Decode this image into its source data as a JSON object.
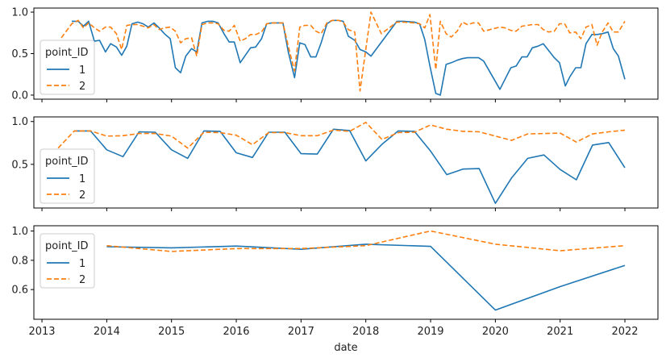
{
  "chart_data": [
    {
      "type": "line",
      "title": "",
      "xlabel": "",
      "ylabel": "",
      "xlim": [
        2012.875,
        2022.51
      ],
      "ylim": [
        -0.049,
        1.049
      ],
      "yticks": [
        0.0,
        0.5,
        1.0
      ],
      "ytick_labels": [
        "0.0",
        "0.5",
        "1.0"
      ],
      "legend": {
        "title": "point_ID",
        "placement": "center-left"
      },
      "series": [
        {
          "name": "1",
          "color": "#1f77b4",
          "style": "solid",
          "x": [
            2013.46,
            2013.56,
            2013.64,
            2013.72,
            2013.81,
            2013.89,
            2013.98,
            2014.06,
            2014.15,
            2014.23,
            2014.31,
            2014.39,
            2014.48,
            2014.56,
            2014.64,
            2014.73,
            2014.81,
            2014.89,
            2014.98,
            2015.06,
            2015.14,
            2015.22,
            2015.31,
            2015.39,
            2015.47,
            2015.56,
            2015.64,
            2015.72,
            2015.81,
            2015.89,
            2015.97,
            2016.06,
            2016.14,
            2016.22,
            2016.3,
            2016.39,
            2016.47,
            2016.55,
            2016.64,
            2016.72,
            2016.8,
            2016.9,
            2016.98,
            2017.06,
            2017.15,
            2017.23,
            2017.31,
            2017.4,
            2017.48,
            2017.58,
            2017.65,
            2017.73,
            2017.83,
            2017.91,
            2018.0,
            2018.08,
            2018.48,
            2018.58,
            2018.75,
            2018.83,
            2018.91,
            2018.99,
            2019.08,
            2019.15,
            2019.24,
            2019.32,
            2019.41,
            2019.49,
            2019.57,
            2019.66,
            2019.74,
            2019.82,
            2020.07,
            2020.24,
            2020.32,
            2020.41,
            2020.49,
            2020.57,
            2020.66,
            2020.74,
            2020.82,
            2020.91,
            2020.99,
            2021.08,
            2021.15,
            2021.24,
            2021.32,
            2021.4,
            2021.49,
            2021.57,
            2021.65,
            2021.74,
            2021.82,
            2021.9,
            2022.0
          ],
          "y": [
            0.89,
            0.89,
            0.83,
            0.89,
            0.65,
            0.66,
            0.52,
            0.62,
            0.58,
            0.48,
            0.59,
            0.86,
            0.88,
            0.86,
            0.82,
            0.87,
            0.81,
            0.74,
            0.68,
            0.33,
            0.27,
            0.47,
            0.56,
            0.52,
            0.87,
            0.89,
            0.89,
            0.87,
            0.74,
            0.64,
            0.64,
            0.39,
            0.48,
            0.57,
            0.58,
            0.68,
            0.86,
            0.87,
            0.87,
            0.87,
            0.53,
            0.21,
            0.63,
            0.61,
            0.46,
            0.46,
            0.63,
            0.86,
            0.9,
            0.9,
            0.89,
            0.71,
            0.66,
            0.55,
            0.52,
            0.47,
            0.89,
            0.89,
            0.88,
            0.86,
            0.67,
            0.35,
            0.02,
            0.0,
            0.37,
            0.39,
            0.42,
            0.44,
            0.45,
            0.45,
            0.45,
            0.41,
            0.07,
            0.33,
            0.35,
            0.46,
            0.46,
            0.57,
            0.59,
            0.62,
            0.54,
            0.45,
            0.39,
            0.11,
            0.22,
            0.33,
            0.33,
            0.62,
            0.73,
            0.73,
            0.74,
            0.76,
            0.56,
            0.47,
            0.19
          ]
        },
        {
          "name": "2",
          "color": "#ff7f0e",
          "style": "dashed",
          "x": [
            2013.3,
            2013.46,
            2013.56,
            2013.64,
            2013.72,
            2013.81,
            2013.89,
            2013.98,
            2014.06,
            2014.15,
            2014.23,
            2014.31,
            2014.39,
            2014.48,
            2014.56,
            2014.64,
            2014.73,
            2014.81,
            2014.89,
            2014.98,
            2015.06,
            2015.14,
            2015.22,
            2015.31,
            2015.39,
            2015.47,
            2015.56,
            2015.64,
            2015.72,
            2015.81,
            2015.89,
            2015.97,
            2016.06,
            2016.14,
            2016.22,
            2016.3,
            2016.39,
            2016.47,
            2016.55,
            2016.64,
            2016.72,
            2016.8,
            2016.9,
            2016.98,
            2017.06,
            2017.15,
            2017.23,
            2017.31,
            2017.4,
            2017.48,
            2017.58,
            2017.65,
            2017.73,
            2017.83,
            2017.91,
            2018.08,
            2018.24,
            2018.48,
            2018.58,
            2018.75,
            2018.83,
            2018.91,
            2018.99,
            2019.08,
            2019.15,
            2019.24,
            2019.32,
            2019.41,
            2019.49,
            2019.57,
            2019.66,
            2019.74,
            2019.82,
            2020.07,
            2020.15,
            2020.24,
            2020.32,
            2020.41,
            2020.49,
            2020.57,
            2020.66,
            2020.74,
            2020.82,
            2020.91,
            2020.99,
            2021.07,
            2021.15,
            2021.24,
            2021.32,
            2021.4,
            2021.49,
            2021.57,
            2021.65,
            2021.74,
            2021.82,
            2021.9,
            2022.0
          ],
          "y": [
            0.69,
            0.86,
            0.9,
            0.81,
            0.87,
            0.81,
            0.77,
            0.82,
            0.82,
            0.74,
            0.55,
            0.84,
            0.85,
            0.85,
            0.83,
            0.81,
            0.85,
            0.79,
            0.81,
            0.82,
            0.77,
            0.63,
            0.68,
            0.69,
            0.47,
            0.85,
            0.87,
            0.87,
            0.86,
            0.78,
            0.77,
            0.84,
            0.65,
            0.68,
            0.73,
            0.73,
            0.76,
            0.86,
            0.87,
            0.87,
            0.87,
            0.6,
            0.29,
            0.82,
            0.84,
            0.84,
            0.77,
            0.74,
            0.87,
            0.9,
            0.9,
            0.88,
            0.79,
            0.76,
            0.05,
            1.0,
            0.74,
            0.88,
            0.88,
            0.87,
            0.86,
            0.81,
            0.97,
            0.31,
            0.89,
            0.74,
            0.7,
            0.77,
            0.88,
            0.85,
            0.87,
            0.87,
            0.77,
            0.82,
            0.81,
            0.78,
            0.77,
            0.83,
            0.84,
            0.85,
            0.85,
            0.79,
            0.76,
            0.77,
            0.86,
            0.86,
            0.75,
            0.76,
            0.68,
            0.82,
            0.85,
            0.6,
            0.76,
            0.87,
            0.76,
            0.76,
            0.89
          ]
        }
      ]
    },
    {
      "type": "line",
      "title": "",
      "xlabel": "",
      "ylabel": "",
      "xlim": [
        2012.875,
        2022.51
      ],
      "ylim": [
        -0.01,
        1.054
      ],
      "yticks": [
        0.5,
        1.0
      ],
      "ytick_labels": [
        "0.5",
        "1.0"
      ],
      "legend": {
        "title": "point_ID",
        "placement": "lower-left"
      },
      "series": [
        {
          "name": "1",
          "color": "#1f77b4",
          "style": "solid",
          "x": [
            2013.5,
            2013.75,
            2014.0,
            2014.25,
            2014.5,
            2014.75,
            2015.0,
            2015.25,
            2015.5,
            2015.75,
            2016.0,
            2016.25,
            2016.5,
            2016.75,
            2017.0,
            2017.25,
            2017.5,
            2017.75,
            2018.0,
            2018.25,
            2018.5,
            2018.75,
            2019.0,
            2019.25,
            2019.5,
            2019.75,
            2020.0,
            2020.25,
            2020.5,
            2020.75,
            2021.0,
            2021.25,
            2021.5,
            2021.75,
            2022.0
          ],
          "y": [
            0.89,
            0.89,
            0.67,
            0.59,
            0.88,
            0.875,
            0.67,
            0.57,
            0.89,
            0.885,
            0.635,
            0.58,
            0.875,
            0.875,
            0.625,
            0.62,
            0.91,
            0.895,
            0.54,
            0.735,
            0.89,
            0.885,
            0.655,
            0.38,
            0.445,
            0.45,
            0.045,
            0.34,
            0.57,
            0.61,
            0.44,
            0.32,
            0.725,
            0.755,
            0.46
          ]
        },
        {
          "name": "2",
          "color": "#ff7f0e",
          "style": "dashed",
          "x": [
            2013.25,
            2013.5,
            2013.75,
            2014.0,
            2014.25,
            2014.5,
            2014.75,
            2015.0,
            2015.25,
            2015.5,
            2015.75,
            2016.0,
            2016.25,
            2016.5,
            2016.75,
            2017.0,
            2017.25,
            2017.5,
            2017.75,
            2018.0,
            2018.25,
            2018.5,
            2018.75,
            2019.0,
            2019.25,
            2019.5,
            2019.75,
            2020.0,
            2020.25,
            2020.5,
            2020.75,
            2021.0,
            2021.25,
            2021.5,
            2021.75,
            2022.0
          ],
          "y": [
            0.69,
            0.89,
            0.89,
            0.83,
            0.835,
            0.86,
            0.86,
            0.83,
            0.69,
            0.875,
            0.87,
            0.84,
            0.73,
            0.87,
            0.87,
            0.835,
            0.835,
            0.9,
            0.885,
            0.99,
            0.79,
            0.87,
            0.875,
            0.96,
            0.91,
            0.885,
            0.88,
            0.83,
            0.78,
            0.855,
            0.86,
            0.865,
            0.76,
            0.855,
            0.88,
            0.9
          ]
        }
      ]
    },
    {
      "type": "line",
      "title": "",
      "xlabel": "date",
      "ylabel": "",
      "xlim": [
        2012.875,
        2022.51
      ],
      "ylim": [
        0.397,
        1.036
      ],
      "yticks": [
        0.6,
        0.8,
        1.0
      ],
      "ytick_labels": [
        "0.6",
        "0.8",
        "1.0"
      ],
      "xticks": [
        2013,
        2014,
        2015,
        2016,
        2017,
        2018,
        2019,
        2020,
        2021,
        2022
      ],
      "xtick_labels": [
        "2013",
        "2014",
        "2015",
        "2016",
        "2017",
        "2018",
        "2019",
        "2020",
        "2021",
        "2022"
      ],
      "legend": {
        "title": "point_ID",
        "placement": "upper-left"
      },
      "series": [
        {
          "name": "1",
          "color": "#1f77b4",
          "style": "solid",
          "x": [
            2014,
            2015,
            2016,
            2017,
            2018,
            2019,
            2020,
            2021,
            2022
          ],
          "y": [
            0.893,
            0.885,
            0.897,
            0.875,
            0.91,
            0.895,
            0.46,
            0.62,
            0.765
          ]
        },
        {
          "name": "2",
          "color": "#ff7f0e",
          "style": "dashed",
          "x": [
            2014,
            2015,
            2016,
            2017,
            2018,
            2019,
            2020,
            2021,
            2022
          ],
          "y": [
            0.9,
            0.86,
            0.88,
            0.88,
            0.9,
            1.0,
            0.91,
            0.865,
            0.9
          ]
        }
      ]
    }
  ]
}
